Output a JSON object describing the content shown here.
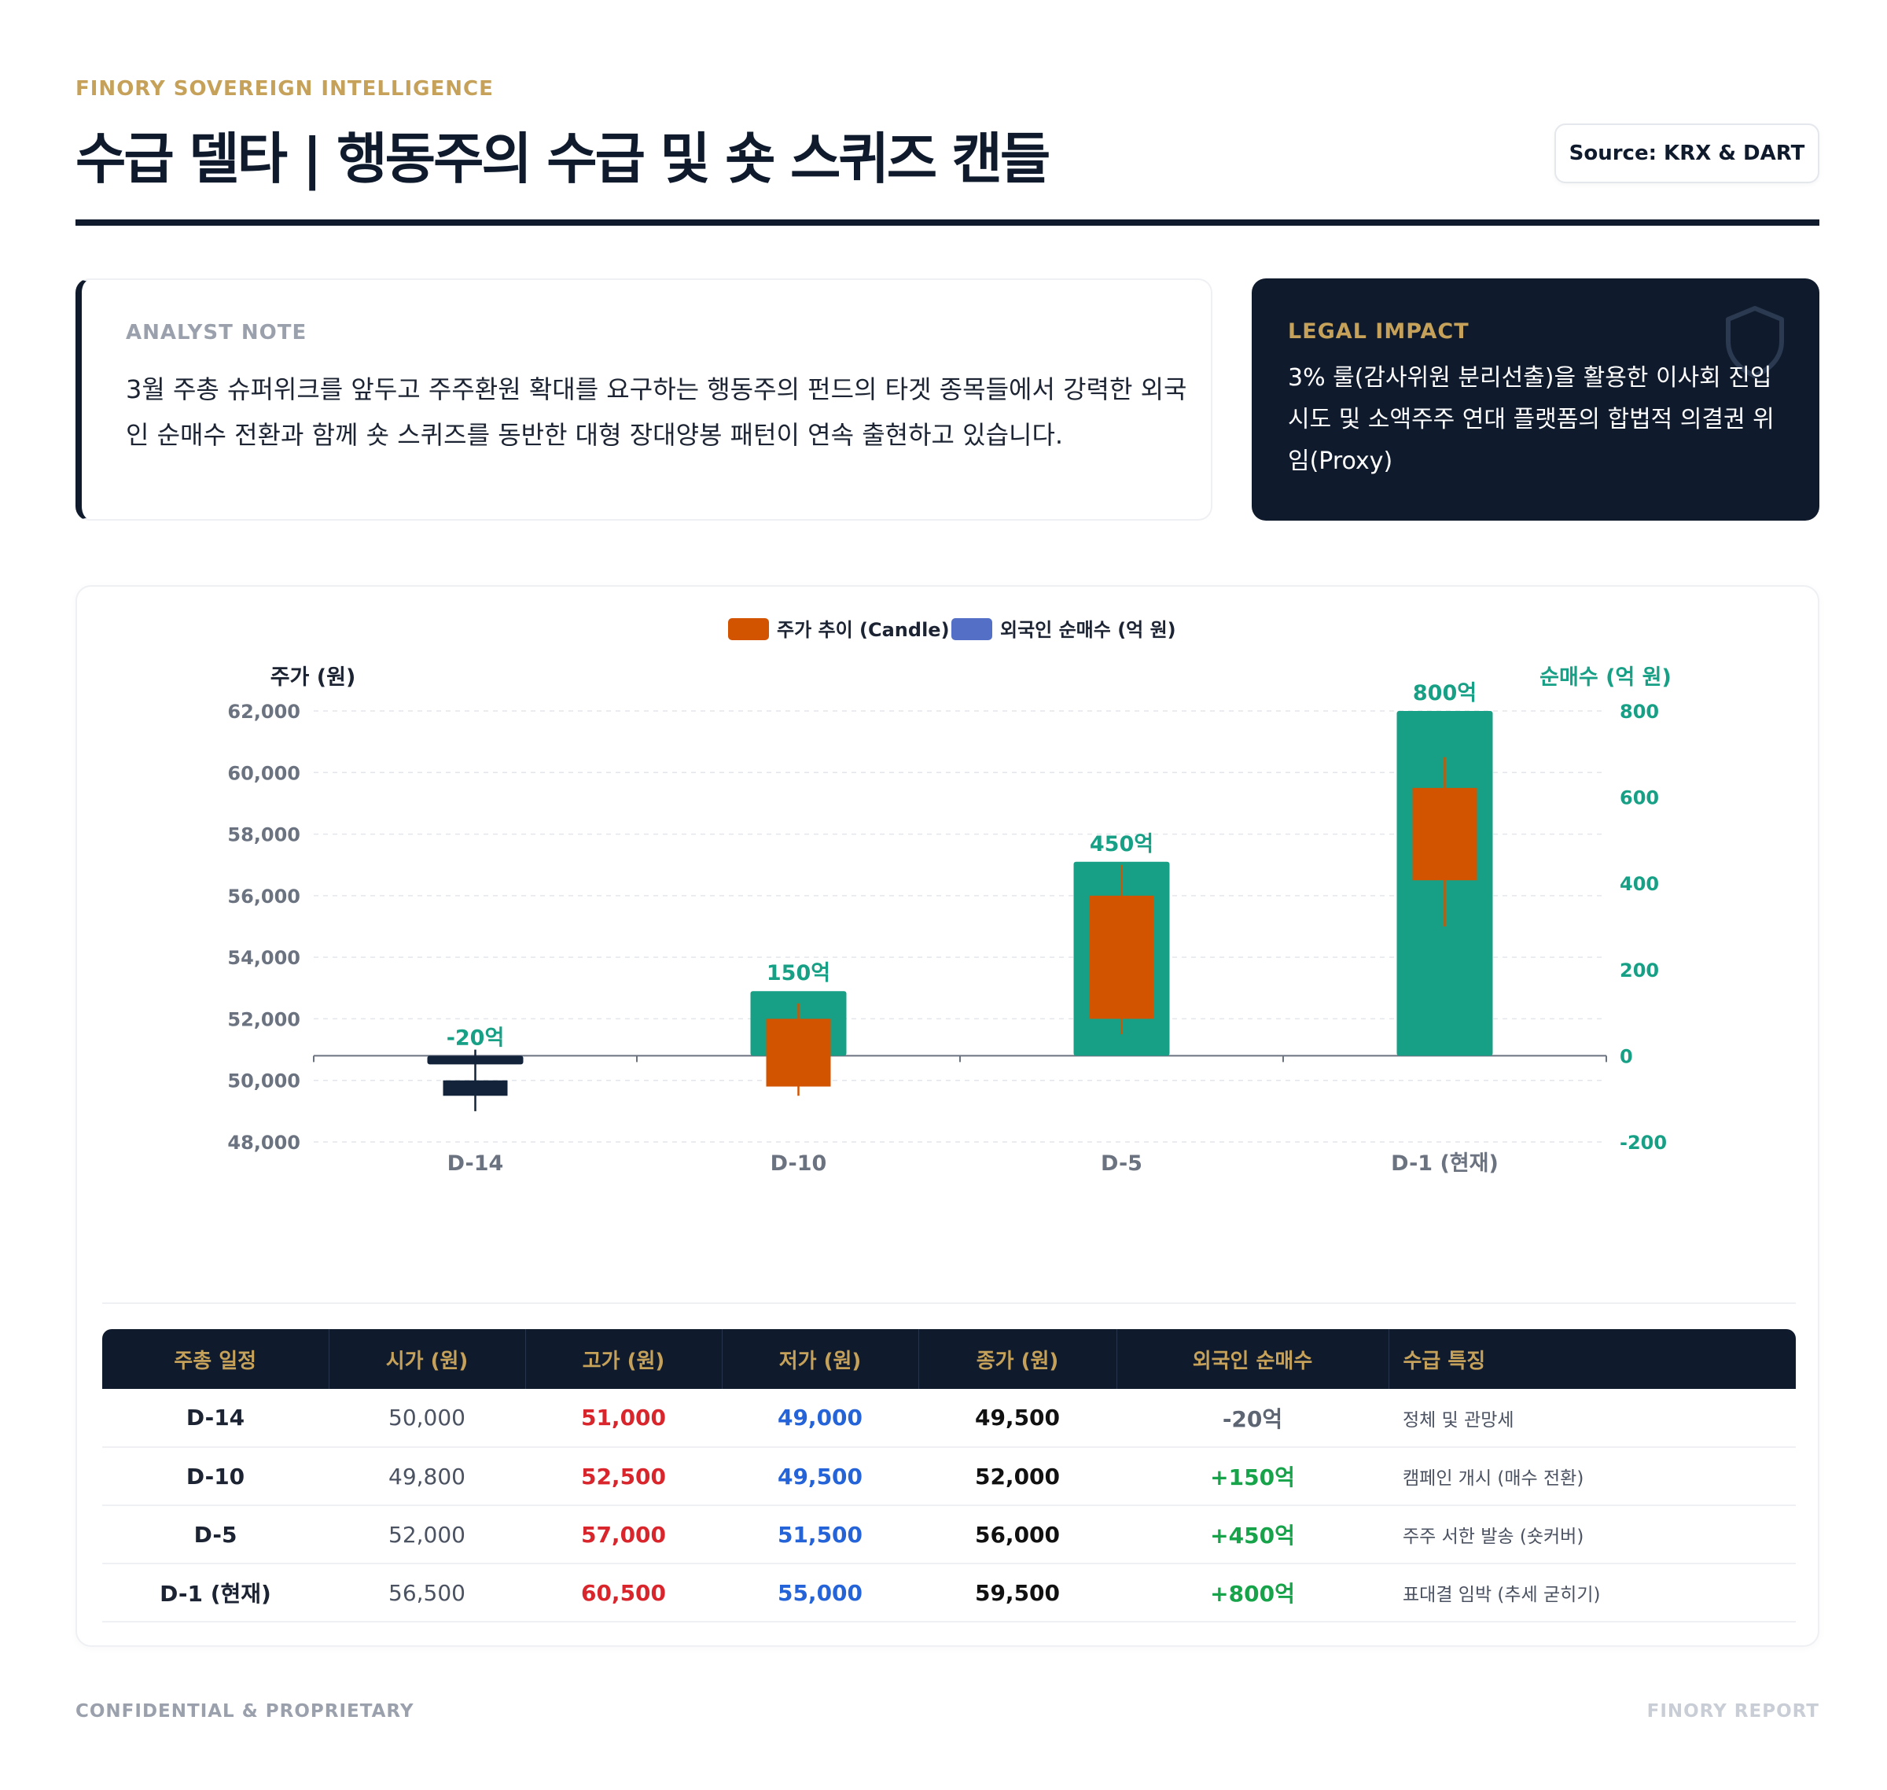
{
  "header": {
    "kicker": "FINORY SOVEREIGN INTELLIGENCE",
    "title": "수급 델타 | 행동주의 수급 및 숏 스퀴즈 캔들",
    "source": "Source: KRX & DART"
  },
  "analyst_note": {
    "label": "ANALYST NOTE",
    "text": "3월 주총 슈퍼위크를 앞두고 주주환원 확대를 요구하는 행동주의 펀드의 타겟 종목들에서 강력한 외국인 순매수 전환과 함께 숏 스퀴즈를 동반한 대형 장대양봉 패턴이 연속 출현하고 있습니다."
  },
  "legal_impact": {
    "label": "LEGAL IMPACT",
    "text": "3% 룰(감사위원 분리선출)을 활용한 이사회 진입 시도 및 소액주주 연대 플랫폼의 합법적 의결권 위임(Proxy)",
    "icon": "shield-icon"
  },
  "colors": {
    "navy": "#0f1b2d",
    "gold": "#c5a15a",
    "candle_up": "#d35400",
    "candle_down": "#13233a",
    "flow_bar": "#17a085",
    "legend_flow": "#5470c6",
    "high": "#d9262c",
    "low": "#2563d8",
    "positive": "#16a34a"
  },
  "chart_data": {
    "type": "bar",
    "categories": [
      "D-14",
      "D-10",
      "D-5",
      "D-1 (현재)"
    ],
    "legend": [
      "주가 추이 (Candle)",
      "외국인 순매수 (억 원)"
    ],
    "y_left": {
      "label": "주가 (원)",
      "range": [
        48000,
        62000
      ],
      "ticks": [
        "62,000",
        "60,000",
        "58,000",
        "56,000",
        "54,000",
        "52,000",
        "50,000",
        "48,000"
      ]
    },
    "y_right": {
      "label": "순매수 (억 원)",
      "range": [
        -200,
        800
      ],
      "ticks": [
        "800",
        "600",
        "400",
        "200",
        "0",
        "-200"
      ]
    },
    "series": [
      {
        "name": "주가 추이 (Candle)",
        "type": "candlestick",
        "values": [
          {
            "open": 50000,
            "high": 51000,
            "low": 49000,
            "close": 49500
          },
          {
            "open": 49800,
            "high": 52500,
            "low": 49500,
            "close": 52000
          },
          {
            "open": 52000,
            "high": 57000,
            "low": 51500,
            "close": 56000
          },
          {
            "open": 56500,
            "high": 60500,
            "low": 55000,
            "close": 59500
          }
        ]
      },
      {
        "name": "외국인 순매수 (억 원)",
        "type": "bar",
        "values": [
          -20,
          150,
          450,
          800
        ],
        "labels": [
          "-20억",
          "150억",
          "450억",
          "800억"
        ]
      }
    ]
  },
  "table": {
    "headers": [
      "주총 일정",
      "시가 (원)",
      "고가 (원)",
      "저가 (원)",
      "종가 (원)",
      "외국인 순매수",
      "수급 특징"
    ],
    "rows": [
      {
        "day": "D-14",
        "open": "50,000",
        "high": "51,000",
        "low": "49,000",
        "close": "49,500",
        "flow": "-20억",
        "note": "정체 및 관망세"
      },
      {
        "day": "D-10",
        "open": "49,800",
        "high": "52,500",
        "low": "49,500",
        "close": "52,000",
        "flow": "+150억",
        "note": "캠페인 개시 (매수 전환)"
      },
      {
        "day": "D-5",
        "open": "52,000",
        "high": "57,000",
        "low": "51,500",
        "close": "56,000",
        "flow": "+450억",
        "note": "주주 서한 발송 (숏커버)"
      },
      {
        "day": "D-1 (현재)",
        "open": "56,500",
        "high": "60,500",
        "low": "55,000",
        "close": "59,500",
        "flow": "+800억",
        "note": "표대결 임박 (추세 굳히기)"
      }
    ]
  },
  "footer": {
    "left": "CONFIDENTIAL & PROPRIETARY",
    "right": "FINORY REPORT"
  }
}
